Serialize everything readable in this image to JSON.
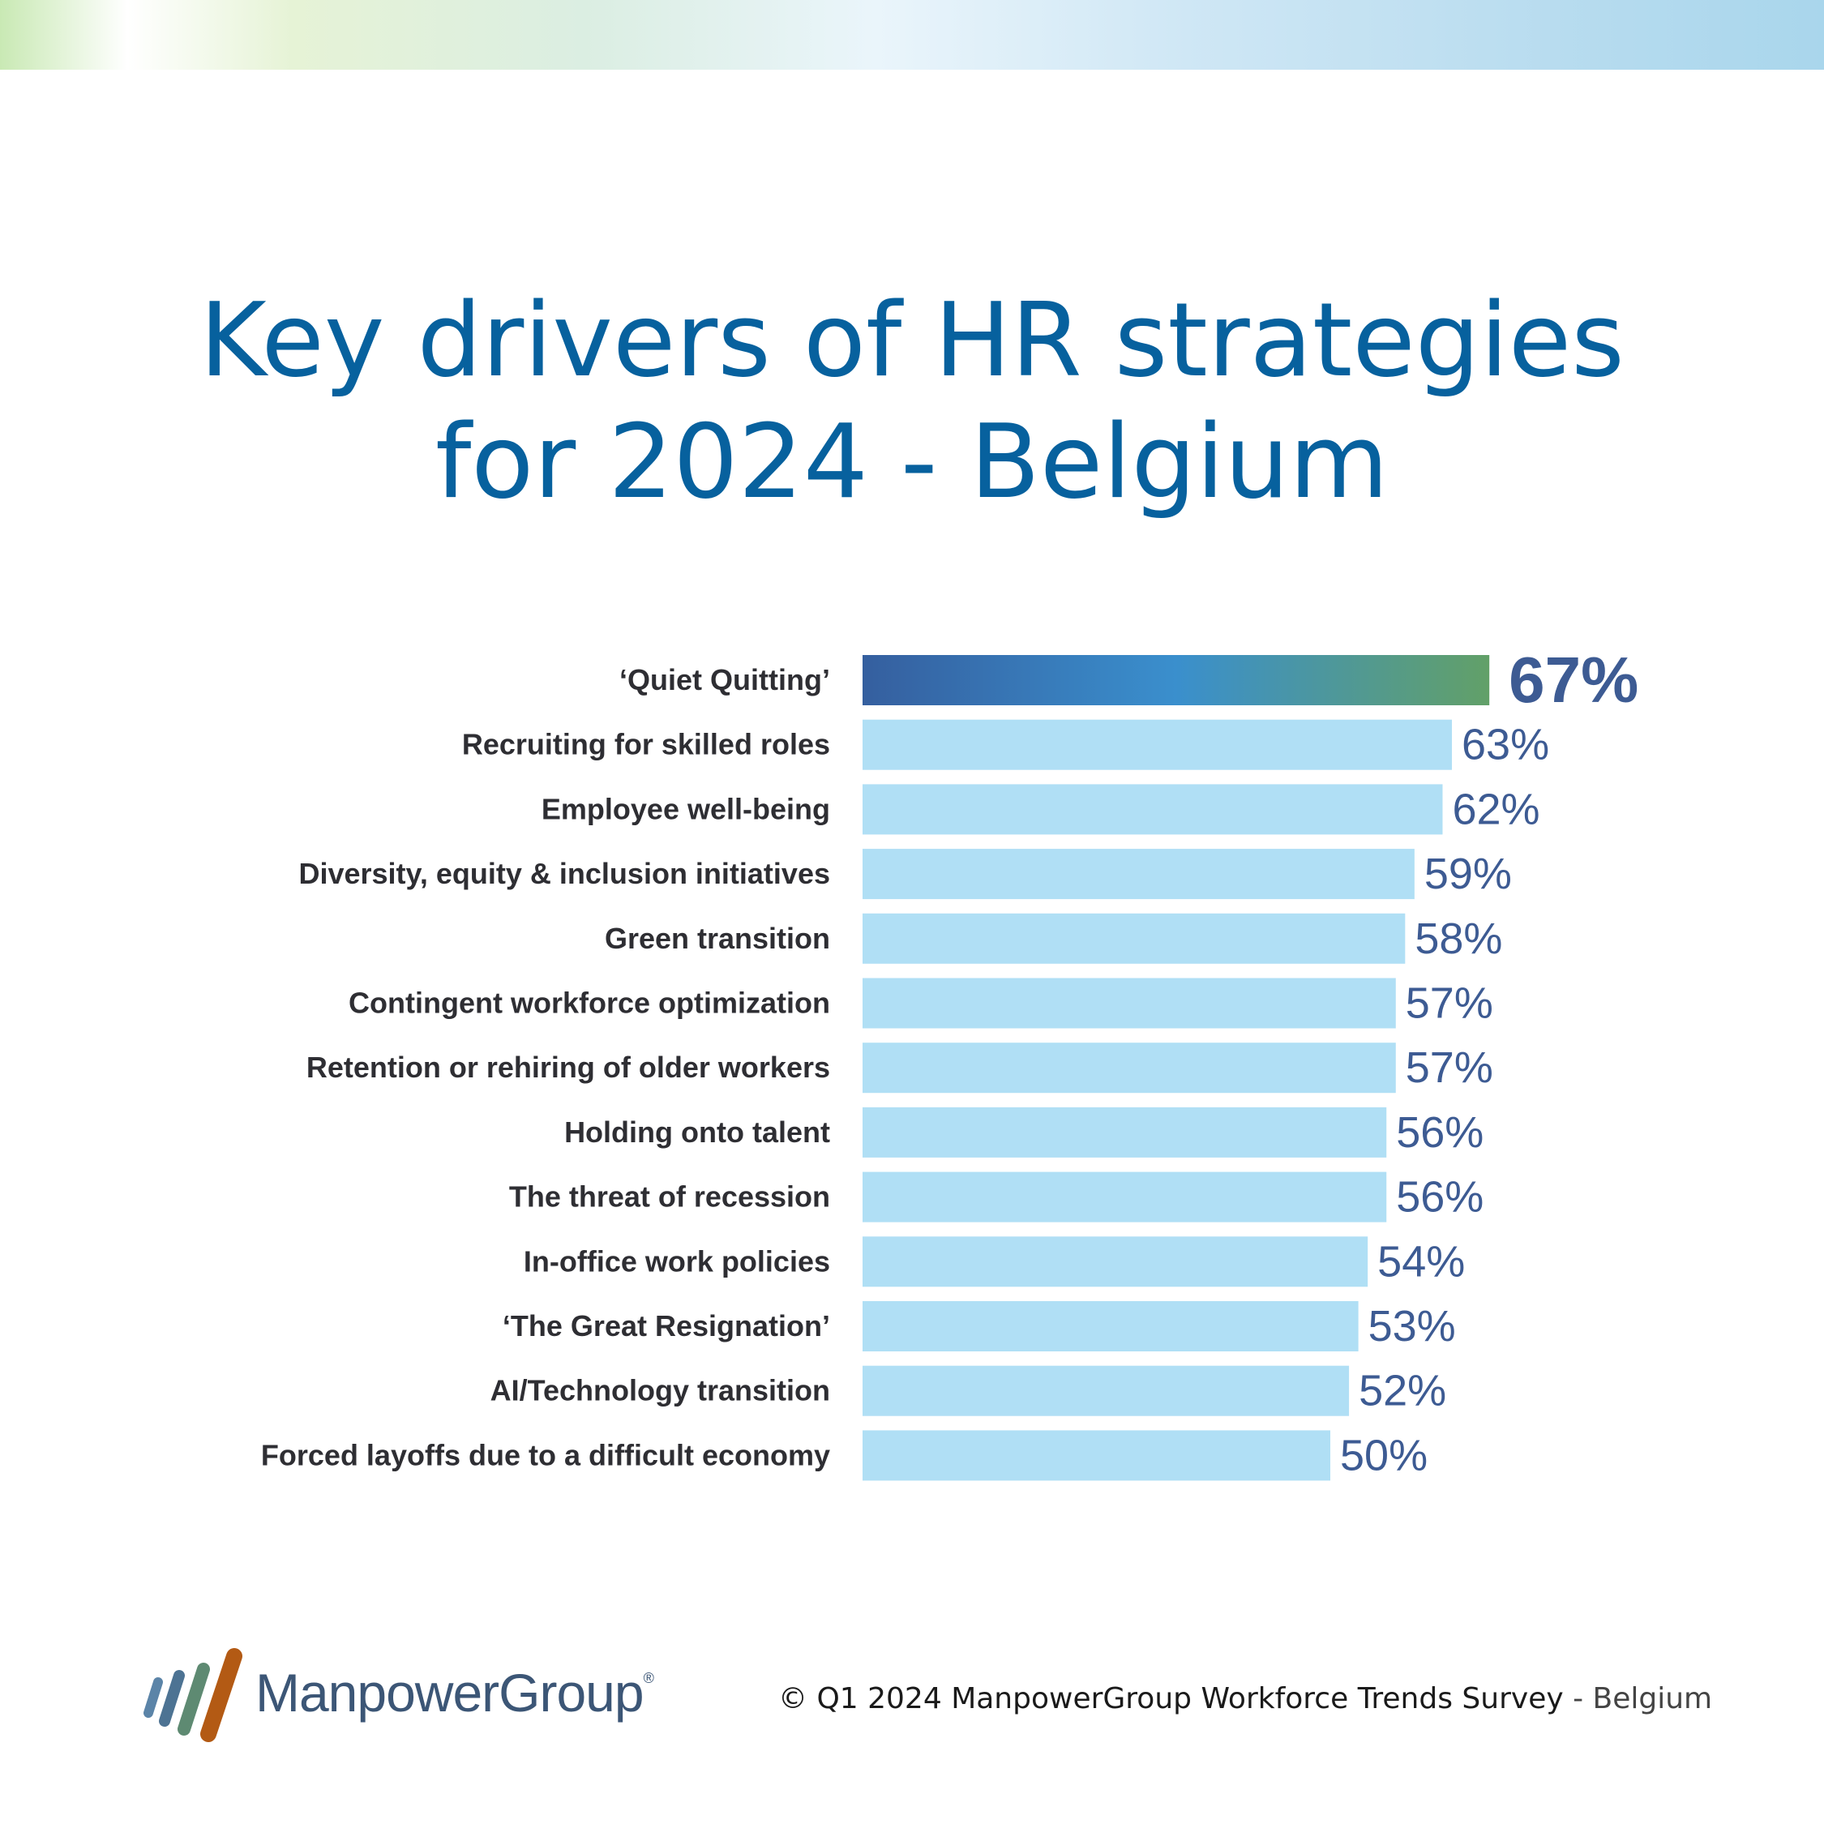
{
  "title_lines": [
    "Key drivers of HR strategies",
    "for 2024 - Belgium"
  ],
  "chart_data": {
    "type": "bar",
    "orientation": "horizontal",
    "categories": [
      "‘Quiet Quitting’",
      "Recruiting for skilled roles",
      "Employee well-being",
      "Diversity, equity & inclusion initiatives",
      "Green transition",
      "Contingent workforce optimization",
      "Retention or rehiring of older workers",
      "Holding onto talent",
      "The threat of recession",
      "In-office work policies",
      "‘The Great Resignation’",
      "AI/Technology transition",
      "Forced layoffs due to a difficult economy"
    ],
    "values": [
      67,
      63,
      62,
      59,
      58,
      57,
      57,
      56,
      56,
      54,
      53,
      52,
      50
    ],
    "value_labels": [
      "67%",
      "63%",
      "62%",
      "59%",
      "58%",
      "57%",
      "57%",
      "56%",
      "56%",
      "54%",
      "53%",
      "52%",
      "50%"
    ],
    "unit": "%",
    "highlight_index": 0,
    "colors": {
      "bar": "#b0dff5",
      "highlight_gradient": [
        "#355f9f",
        "#3a8fcd",
        "#62a068"
      ],
      "label_text": "#2e2e33",
      "value_text": "#3d5b93"
    }
  },
  "footer": {
    "logo_text": "ManpowerGroup",
    "logo_mark": "®",
    "credit_main": "© Q1 2024 ManpowerGroup Workforce Trends Survey",
    "credit_country": "- Belgium"
  }
}
